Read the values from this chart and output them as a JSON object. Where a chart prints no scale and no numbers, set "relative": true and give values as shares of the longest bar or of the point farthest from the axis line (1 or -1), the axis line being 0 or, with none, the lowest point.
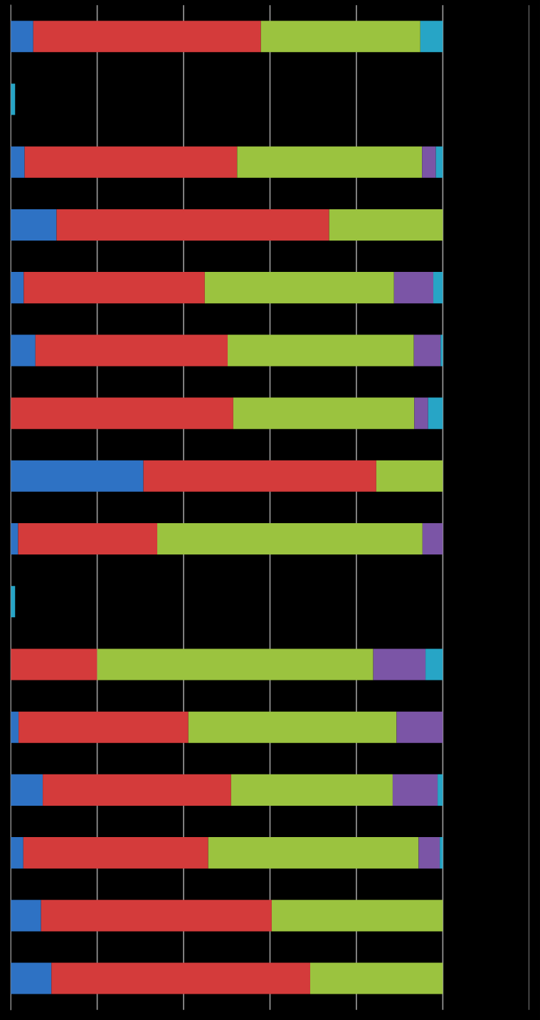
{
  "chart_data": {
    "type": "bar",
    "orientation": "horizontal",
    "stacked": true,
    "relative": true,
    "grid": "x",
    "categories": [
      null,
      null,
      null,
      null,
      null,
      null,
      null,
      null,
      null,
      null,
      null,
      null,
      null,
      null,
      null,
      null
    ],
    "series": [
      {
        "color": "#2e72c4",
        "values": [
          0.052,
          null,
          0.032,
          0.106,
          0.03,
          0.057,
          null,
          0.307,
          0.017,
          null,
          null,
          0.018,
          0.074,
          0.029,
          0.07,
          0.094
        ]
      },
      {
        "color": "#d43b3b",
        "values": [
          0.527,
          null,
          0.492,
          0.631,
          0.419,
          0.445,
          0.515,
          0.539,
          0.322,
          null,
          0.2,
          0.393,
          0.436,
          0.428,
          0.534,
          0.599
        ]
      },
      {
        "color": "#9bc33f",
        "values": [
          0.369,
          null,
          0.428,
          0.263,
          0.438,
          0.431,
          0.419,
          0.154,
          0.614,
          null,
          0.639,
          0.482,
          0.374,
          0.487,
          0.396,
          0.307
        ]
      },
      {
        "color": "#7b55a6",
        "values": [
          null,
          null,
          0.032,
          null,
          0.091,
          0.062,
          0.032,
          null,
          0.047,
          null,
          0.121,
          0.107,
          0.104,
          0.049,
          null,
          null
        ]
      },
      {
        "color": "#27a5c6",
        "values": [
          0.052,
          0.01,
          0.016,
          null,
          0.022,
          0.005,
          0.034,
          null,
          null,
          0.01,
          0.04,
          null,
          0.012,
          0.007,
          null,
          null
        ]
      }
    ]
  }
}
